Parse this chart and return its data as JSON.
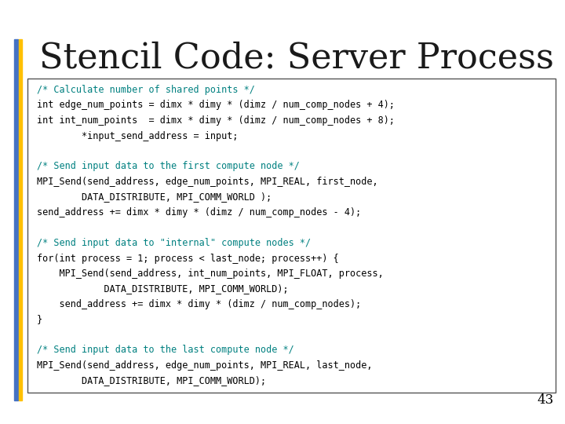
{
  "title": "Stencil Code: Server Process (II)",
  "title_color": "#1a1a1a",
  "title_fontsize": 32,
  "slide_bg": "#ffffff",
  "left_bar_blue": "#4472C4",
  "left_bar_orange": "#FFC000",
  "page_number": "43",
  "code_box_bg": "#ffffff",
  "code_box_border": "#555555",
  "comment_color": "#008080",
  "code_color": "#000000",
  "code_lines": [
    {
      "text": "/* Calculate number of shared points */",
      "color": "#008080"
    },
    {
      "text": "int edge_num_points = dimx * dimy * (dimz / num_comp_nodes + 4);",
      "color": "#000000"
    },
    {
      "text": "int int_num_points  = dimx * dimy * (dimz / num_comp_nodes + 8);",
      "color": "#000000"
    },
    {
      "text": "        *input_send_address = input;",
      "color": "#000000"
    },
    {
      "text": "",
      "color": "#000000"
    },
    {
      "text": "/* Send input data to the first compute node */",
      "color": "#008080"
    },
    {
      "text": "MPI_Send(send_address, edge_num_points, MPI_REAL, first_node,",
      "color": "#000000"
    },
    {
      "text": "        DATA_DISTRIBUTE, MPI_COMM_WORLD );",
      "color": "#000000"
    },
    {
      "text": "send_address += dimx * dimy * (dimz / num_comp_nodes - 4);",
      "color": "#000000"
    },
    {
      "text": "",
      "color": "#000000"
    },
    {
      "text": "/* Send input data to \"internal\" compute nodes */",
      "color": "#008080"
    },
    {
      "text": "for(int process = 1; process < last_node; process++) {",
      "color": "#000000"
    },
    {
      "text": "    MPI_Send(send_address, int_num_points, MPI_FLOAT, process,",
      "color": "#000000"
    },
    {
      "text": "            DATA_DISTRIBUTE, MPI_COMM_WORLD);",
      "color": "#000000"
    },
    {
      "text": "    send_address += dimx * dimy * (dimz / num_comp_nodes);",
      "color": "#000000"
    },
    {
      "text": "}",
      "color": "#000000"
    },
    {
      "text": "",
      "color": "#000000"
    },
    {
      "text": "/* Send input data to the last compute node */",
      "color": "#008080"
    },
    {
      "text": "MPI_Send(send_address, edge_num_points, MPI_REAL, last_node,",
      "color": "#000000"
    },
    {
      "text": "        DATA_DISTRIBUTE, MPI_COMM_WORLD);",
      "color": "#000000"
    }
  ]
}
